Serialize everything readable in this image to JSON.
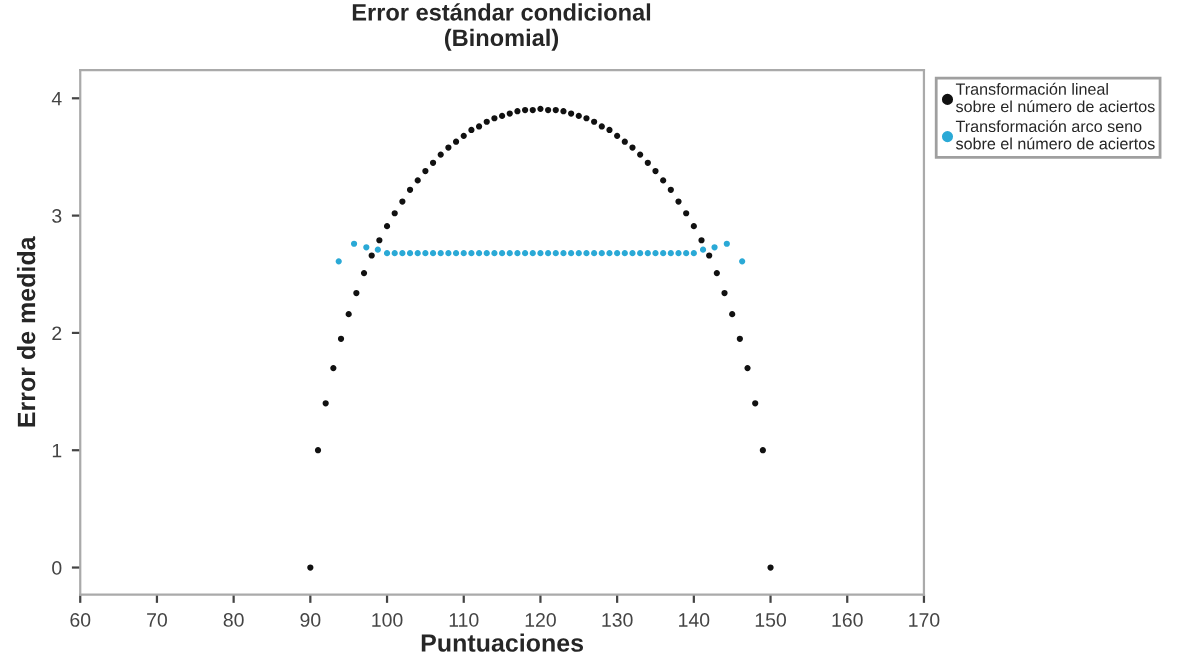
{
  "chart_data": {
    "type": "scatter",
    "title": "Error estándar condicional\n(Binomial)",
    "xlabel": "Puntuaciones",
    "ylabel": "Error de medida",
    "xlim": [
      60,
      170
    ],
    "xticks": [
      60,
      70,
      80,
      90,
      100,
      110,
      120,
      130,
      140,
      150,
      160,
      170
    ],
    "ylim": [
      -0.23,
      4.24
    ],
    "yticks": [
      0,
      1,
      2,
      3,
      4
    ],
    "grid": false,
    "legend": "top right",
    "marker": "circle",
    "series": [
      {
        "name": "Transformación lineal\nsobre el número de aciertos",
        "color": "#111111",
        "x": [
          90,
          91,
          92,
          93,
          94,
          95,
          96,
          97,
          98,
          99,
          100,
          101,
          102,
          103,
          104,
          105,
          106,
          107,
          108,
          109,
          110,
          111,
          112,
          113,
          114,
          115,
          116,
          117,
          118,
          119,
          120,
          121,
          122,
          123,
          124,
          125,
          126,
          127,
          128,
          129,
          130,
          131,
          132,
          133,
          134,
          135,
          136,
          137,
          138,
          139,
          140,
          141,
          142,
          143,
          144,
          145,
          146,
          147,
          148,
          149,
          150
        ],
        "values": [
          0,
          1.0,
          1.4,
          1.7,
          1.95,
          2.16,
          2.34,
          2.51,
          2.66,
          2.79,
          2.91,
          3.02,
          3.12,
          3.22,
          3.3,
          3.38,
          3.45,
          3.52,
          3.58,
          3.63,
          3.68,
          3.73,
          3.76,
          3.8,
          3.83,
          3.85,
          3.87,
          3.89,
          3.9,
          3.9,
          3.91,
          3.9,
          3.9,
          3.89,
          3.87,
          3.85,
          3.83,
          3.8,
          3.76,
          3.73,
          3.68,
          3.63,
          3.58,
          3.52,
          3.45,
          3.38,
          3.3,
          3.22,
          3.12,
          3.02,
          2.91,
          2.79,
          2.66,
          2.51,
          2.34,
          2.16,
          1.95,
          1.7,
          1.4,
          1.0,
          0
        ]
      },
      {
        "name": "Transformación arco seno\nsobre el número de aciertos",
        "color": "#2aa9d6",
        "x": [
          93.7,
          95.7,
          97.3,
          98.8,
          100,
          101,
          102,
          103,
          104,
          105,
          106,
          107,
          108,
          109,
          110,
          111,
          112,
          113,
          114,
          115,
          116,
          117,
          118,
          119,
          120,
          121,
          122,
          123,
          124,
          125,
          126,
          127,
          128,
          129,
          130,
          131,
          132,
          133,
          134,
          135,
          136,
          137,
          138,
          139,
          140,
          141.2,
          142.7,
          144.3,
          146.3
        ],
        "values": [
          2.61,
          2.76,
          2.73,
          2.71,
          2.68,
          2.68,
          2.68,
          2.68,
          2.68,
          2.68,
          2.68,
          2.68,
          2.68,
          2.68,
          2.68,
          2.68,
          2.68,
          2.68,
          2.68,
          2.68,
          2.68,
          2.68,
          2.68,
          2.68,
          2.68,
          2.68,
          2.68,
          2.68,
          2.68,
          2.68,
          2.68,
          2.68,
          2.68,
          2.68,
          2.68,
          2.68,
          2.68,
          2.68,
          2.68,
          2.68,
          2.68,
          2.68,
          2.68,
          2.68,
          2.68,
          2.71,
          2.73,
          2.76,
          2.61
        ]
      }
    ]
  }
}
